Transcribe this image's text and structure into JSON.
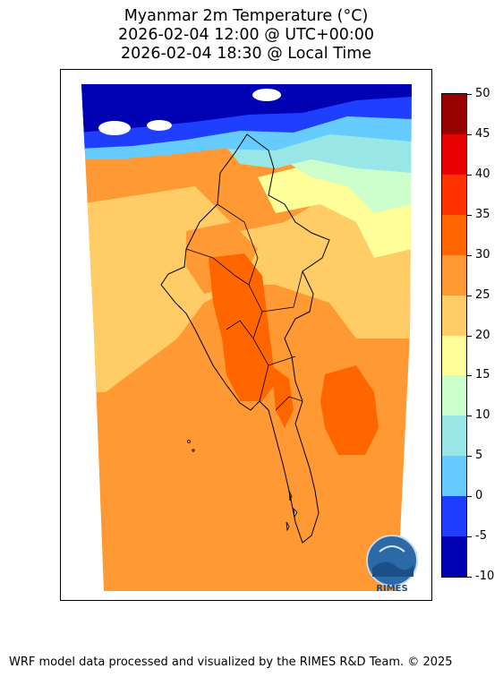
{
  "title": {
    "line1": "Myanmar 2m Temperature (°C)",
    "line2": "2026-02-04 12:00 @ UTC+00:00",
    "line3": "2026-02-04 18:30 @ Local Time"
  },
  "colorbar": {
    "ticks": [
      "50",
      "45",
      "40",
      "35",
      "30",
      "25",
      "20",
      "15",
      "10",
      "5",
      "0",
      "-5",
      "-10"
    ],
    "bins": [
      {
        "range": "45-50",
        "color": "#990000"
      },
      {
        "range": "40-45",
        "color": "#e60000"
      },
      {
        "range": "35-40",
        "color": "#ff3300"
      },
      {
        "range": "30-35",
        "color": "#ff6600"
      },
      {
        "range": "25-30",
        "color": "#ff9933"
      },
      {
        "range": "20-25",
        "color": "#ffcc66"
      },
      {
        "range": "15-20",
        "color": "#ffff99"
      },
      {
        "range": "10-15",
        "color": "#ccffcc"
      },
      {
        "range": "5-10",
        "color": "#99e6e6"
      },
      {
        "range": "0-5",
        "color": "#66ccff"
      },
      {
        "range": "-5-0",
        "color": "#1f3fff"
      },
      {
        "range": "-10--5",
        "color": "#0000b3"
      }
    ]
  },
  "map": {
    "region": "Myanmar",
    "variable": "2m Temperature",
    "unit": "°C",
    "logo_text": "RIMES"
  },
  "footer": {
    "credit": "WRF model data processed and visualized by the RIMES R&D Team. © 2025"
  }
}
